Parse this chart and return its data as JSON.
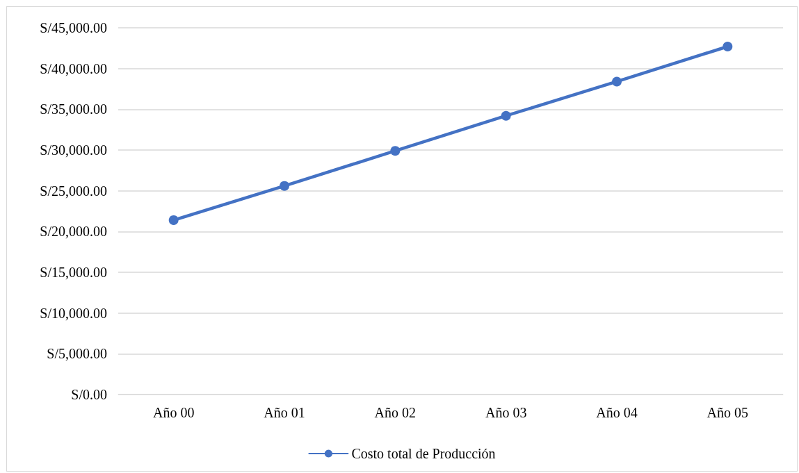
{
  "chart_data": {
    "type": "line",
    "categories": [
      "Año 00",
      "Año 01",
      "Año 02",
      "Año 03",
      "Año 04",
      "Año 05"
    ],
    "series": [
      {
        "name": "Costo total de Producción",
        "color": "#4472c4",
        "values": [
          21400,
          25600,
          29900,
          34200,
          38400,
          42700
        ]
      }
    ],
    "ylim": [
      0,
      45000
    ],
    "yticks": [
      {
        "value": 0,
        "label": "S/0.00"
      },
      {
        "value": 5000,
        "label": "S/5,000.00"
      },
      {
        "value": 10000,
        "label": "S/10,000.00"
      },
      {
        "value": 15000,
        "label": "S/15,000.00"
      },
      {
        "value": 20000,
        "label": "S/20,000.00"
      },
      {
        "value": 25000,
        "label": "S/25,000.00"
      },
      {
        "value": 30000,
        "label": "S/30,000.00"
      },
      {
        "value": 35000,
        "label": "S/35,000.00"
      },
      {
        "value": 40000,
        "label": "S/40,000.00"
      },
      {
        "value": 45000,
        "label": "S/45,000.00"
      }
    ],
    "grid": "y",
    "legend": "bottom",
    "marker": "circle",
    "line_style": "solid"
  }
}
